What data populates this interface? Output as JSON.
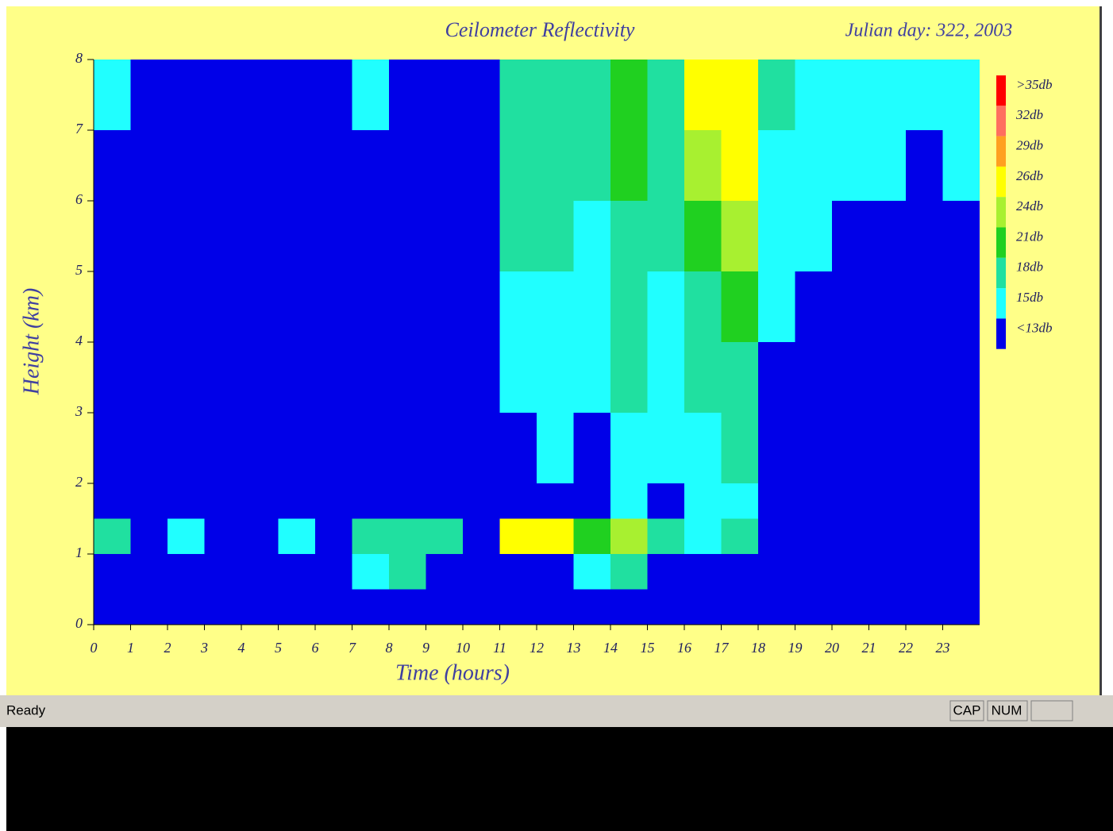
{
  "chart_data": {
    "type": "heatmap",
    "title": "Ceilometer Reflectivity",
    "subtitle": "Julian day: 322, 2003",
    "xlabel": "Time (hours)",
    "ylabel": "Height (km)",
    "xlim": [
      0,
      24
    ],
    "ylim": [
      0,
      8
    ],
    "xticks": [
      0,
      1,
      2,
      3,
      4,
      5,
      6,
      7,
      8,
      9,
      10,
      11,
      12,
      13,
      14,
      15,
      16,
      17,
      18,
      19,
      20,
      21,
      22,
      23
    ],
    "yticks": [
      0,
      1,
      2,
      3,
      4,
      5,
      6,
      7,
      8
    ],
    "x_bins": [
      0,
      1,
      2,
      3,
      4,
      5,
      6,
      7,
      8,
      9,
      10,
      11,
      12,
      13,
      14,
      15,
      16,
      17,
      18,
      19,
      20,
      21,
      22,
      23,
      24
    ],
    "y_bins": [
      0,
      0.5,
      1,
      1.5,
      2,
      3,
      4,
      5,
      6,
      7,
      8
    ],
    "background_color": "#0000e8",
    "colorbar": [
      {
        "label": ">35db",
        "value": 35,
        "color": "#ff0000"
      },
      {
        "label": "32db",
        "value": 32,
        "color": "#ff6f5f"
      },
      {
        "label": "29db",
        "value": 29,
        "color": "#ffa020"
      },
      {
        "label": "26db",
        "value": 26,
        "color": "#ffff00"
      },
      {
        "label": "24db",
        "value": 24,
        "color": "#a8f030"
      },
      {
        "label": "21db",
        "value": 21,
        "color": "#20d020"
      },
      {
        "label": "18db",
        "value": 18,
        "color": "#20e0a0"
      },
      {
        "label": "15db",
        "value": 15,
        "color": "#20ffff"
      },
      {
        "label": "<13db",
        "value": 13,
        "color": "#0000e8"
      }
    ],
    "z": [
      [
        10,
        10,
        10,
        10,
        10,
        10,
        10,
        10,
        13,
        10,
        10,
        10,
        10,
        12,
        14,
        11,
        10,
        10,
        10,
        10,
        10,
        11,
        11,
        12
      ],
      [
        14,
        10,
        12,
        12,
        10,
        13,
        10,
        16,
        18,
        13,
        11,
        12,
        14,
        16,
        20,
        13,
        13,
        13,
        10,
        11,
        11,
        12,
        12,
        12
      ],
      [
        18,
        10,
        16,
        13,
        14,
        16,
        11,
        18,
        20,
        18,
        12,
        28,
        26,
        22,
        24,
        18,
        17,
        18,
        12,
        10,
        10,
        10,
        10,
        10
      ],
      [
        10,
        10,
        10,
        10,
        10,
        10,
        10,
        10,
        10,
        10,
        10,
        13,
        14,
        13,
        16,
        14,
        15,
        16,
        11,
        10,
        10,
        10,
        10,
        10
      ],
      [
        10,
        10,
        10,
        10,
        10,
        10,
        10,
        10,
        11,
        10,
        10,
        14,
        15,
        14,
        17,
        15,
        16,
        18,
        12,
        11,
        10,
        11,
        11,
        11
      ],
      [
        11,
        10,
        10,
        10,
        10,
        11,
        10,
        12,
        12,
        12,
        11,
        15,
        16,
        15,
        18,
        16,
        18,
        20,
        14,
        12,
        11,
        12,
        12,
        12
      ],
      [
        12,
        10,
        11,
        11,
        10,
        12,
        10,
        13,
        13,
        13,
        12,
        16,
        17,
        16,
        19,
        17,
        20,
        22,
        15,
        14,
        13,
        13,
        13,
        13
      ],
      [
        13,
        12,
        12,
        12,
        12,
        13,
        11,
        14,
        14,
        13,
        13,
        18,
        18,
        17,
        20,
        18,
        22,
        24,
        16,
        15,
        14,
        14,
        14,
        14
      ],
      [
        14,
        13,
        13,
        12,
        13,
        13,
        12,
        14,
        14,
        14,
        13,
        19,
        19,
        18,
        21,
        19,
        24,
        26,
        17,
        16,
        15,
        15,
        14,
        15
      ],
      [
        15,
        14,
        14,
        13,
        14,
        14,
        13,
        15,
        14,
        14,
        14,
        20,
        20,
        19,
        22,
        20,
        26,
        28,
        18,
        17,
        16,
        16,
        15,
        16
      ]
    ]
  },
  "status_bar": {
    "text": "Ready",
    "indicators": [
      "CAP",
      "NUM"
    ]
  }
}
